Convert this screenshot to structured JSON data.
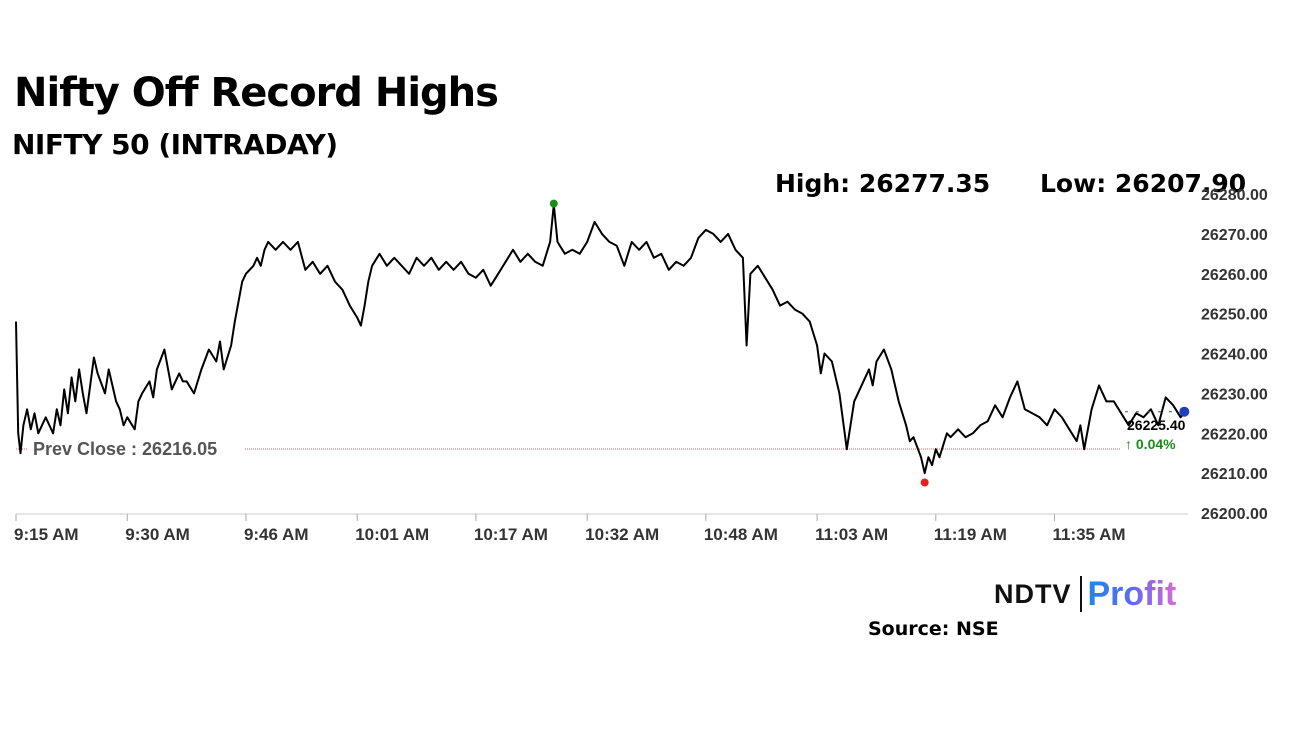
{
  "chart_data": {
    "type": "line",
    "title": "Nifty Off Record Highs",
    "subtitle": "NIFTY 50 (INTRADAY)",
    "high_label": "High: 26277.35",
    "low_label": "Low: 26207.90",
    "high": 26277.35,
    "low": 26207.9,
    "prev_close": 26216.05,
    "prev_close_label": "Prev Close : 26216.05",
    "last_value": 26225.4,
    "last_value_label": "26225.40",
    "change_label": "↑ 0.04%",
    "ylim": [
      26200,
      26280
    ],
    "y_ticks": [
      "26200.00",
      "26210.00",
      "26220.00",
      "26230.00",
      "26240.00",
      "26250.00",
      "26260.00",
      "26270.00",
      "26280.00"
    ],
    "x_ticks": [
      "9:15 AM",
      "9:30 AM",
      "9:46 AM",
      "10:01 AM",
      "10:17 AM",
      "10:32 AM",
      "10:48 AM",
      "11:03 AM",
      "11:19 AM",
      "11:35 AM"
    ],
    "x_tick_minutes": [
      555,
      570,
      586,
      601,
      617,
      632,
      648,
      663,
      679,
      695
    ],
    "grid": false,
    "colors": {
      "line": "#000000",
      "high_marker": "#1a8c1a",
      "low_marker": "#e62020",
      "last_marker": "#1f3fbf",
      "prev_close_line": "#e06060"
    },
    "series": [
      {
        "points": [
          [
            555,
            26248
          ],
          [
            555.3,
            26220
          ],
          [
            555.6,
            26215
          ],
          [
            556,
            26222
          ],
          [
            556.5,
            26226
          ],
          [
            557,
            26221
          ],
          [
            557.5,
            26225
          ],
          [
            558,
            26220
          ],
          [
            559,
            26224
          ],
          [
            560,
            26220
          ],
          [
            560.5,
            26226
          ],
          [
            561,
            26222
          ],
          [
            561.5,
            26231
          ],
          [
            562,
            26225
          ],
          [
            562.5,
            26234
          ],
          [
            563,
            26228
          ],
          [
            563.5,
            26236
          ],
          [
            564,
            26230
          ],
          [
            564.5,
            26225
          ],
          [
            565,
            26232
          ],
          [
            565.5,
            26239
          ],
          [
            566,
            26235
          ],
          [
            567,
            26230
          ],
          [
            567.5,
            26236
          ],
          [
            568,
            26232
          ],
          [
            568.5,
            26228
          ],
          [
            569,
            26226
          ],
          [
            569.5,
            26222
          ],
          [
            570,
            26224
          ],
          [
            571,
            26221
          ],
          [
            571.5,
            26228
          ],
          [
            572,
            26230
          ],
          [
            573,
            26233
          ],
          [
            573.5,
            26229
          ],
          [
            574,
            26236
          ],
          [
            575,
            26241
          ],
          [
            575.5,
            26236
          ],
          [
            576,
            26231
          ],
          [
            577,
            26235
          ],
          [
            577.5,
            26233
          ],
          [
            578,
            26233
          ],
          [
            579,
            26230
          ],
          [
            580,
            26236
          ],
          [
            581,
            26241
          ],
          [
            582,
            26238
          ],
          [
            582.5,
            26243
          ],
          [
            583,
            26236
          ],
          [
            584,
            26242
          ],
          [
            584.5,
            26248
          ],
          [
            585,
            26253
          ],
          [
            585.5,
            26258
          ],
          [
            586,
            26260
          ],
          [
            587,
            26262
          ],
          [
            587.5,
            26264
          ],
          [
            588,
            26262
          ],
          [
            588.5,
            26266
          ],
          [
            589,
            26268
          ],
          [
            590,
            26266
          ],
          [
            591,
            26268
          ],
          [
            592,
            26266
          ],
          [
            593,
            26268
          ],
          [
            594,
            26261
          ],
          [
            595,
            26263
          ],
          [
            596,
            26260
          ],
          [
            597,
            26262
          ],
          [
            598,
            26258
          ],
          [
            599,
            26256
          ],
          [
            600,
            26252
          ],
          [
            601,
            26249
          ],
          [
            601.5,
            26247
          ],
          [
            602,
            26252
          ],
          [
            602.5,
            26258
          ],
          [
            603,
            26262
          ],
          [
            604,
            26265
          ],
          [
            605,
            26262
          ],
          [
            606,
            26264
          ],
          [
            607,
            26262
          ],
          [
            608,
            26260
          ],
          [
            609,
            26264
          ],
          [
            610,
            26262
          ],
          [
            611,
            26264
          ],
          [
            612,
            26261
          ],
          [
            613,
            26263
          ],
          [
            614,
            26261
          ],
          [
            615,
            26263
          ],
          [
            616,
            26260
          ],
          [
            617,
            26259
          ],
          [
            618,
            26261
          ],
          [
            619,
            26257
          ],
          [
            620,
            26260
          ],
          [
            621,
            26263
          ],
          [
            622,
            26266
          ],
          [
            623,
            26263
          ],
          [
            624,
            26265
          ],
          [
            625,
            26263
          ],
          [
            626,
            26262
          ],
          [
            627,
            26268
          ],
          [
            627.5,
            26277.35
          ],
          [
            628,
            26268
          ],
          [
            629,
            26265
          ],
          [
            630,
            26266
          ],
          [
            631,
            26265
          ],
          [
            632,
            26268
          ],
          [
            633,
            26273
          ],
          [
            634,
            26270
          ],
          [
            635,
            26268
          ],
          [
            636,
            26267
          ],
          [
            637,
            26262
          ],
          [
            638,
            26268
          ],
          [
            639,
            26266
          ],
          [
            640,
            26268
          ],
          [
            641,
            26264
          ],
          [
            642,
            26265
          ],
          [
            643,
            26261
          ],
          [
            644,
            26263
          ],
          [
            645,
            26262
          ],
          [
            646,
            26264
          ],
          [
            647,
            26269
          ],
          [
            648,
            26271
          ],
          [
            649,
            26270
          ],
          [
            650,
            26268
          ],
          [
            651,
            26270
          ],
          [
            652,
            26266
          ],
          [
            653,
            26264
          ],
          [
            653.5,
            26242
          ],
          [
            654,
            26260
          ],
          [
            655,
            26262
          ],
          [
            656,
            26259
          ],
          [
            657,
            26256
          ],
          [
            658,
            26252
          ],
          [
            659,
            26253
          ],
          [
            660,
            26251
          ],
          [
            661,
            26250
          ],
          [
            662,
            26248
          ],
          [
            663,
            26242
          ],
          [
            663.5,
            26235
          ],
          [
            664,
            26240
          ],
          [
            665,
            26238
          ],
          [
            666,
            26230
          ],
          [
            667,
            26216
          ],
          [
            667.5,
            26222
          ],
          [
            668,
            26228
          ],
          [
            669,
            26232
          ],
          [
            670,
            26236
          ],
          [
            670.5,
            26232
          ],
          [
            671,
            26238
          ],
          [
            672,
            26241
          ],
          [
            673,
            26236
          ],
          [
            673.5,
            26232
          ],
          [
            674,
            26228
          ],
          [
            675,
            26222
          ],
          [
            675.5,
            26218
          ],
          [
            676,
            26219
          ],
          [
            677,
            26214
          ],
          [
            677.5,
            26210
          ],
          [
            678,
            26214
          ],
          [
            678.5,
            26212
          ],
          [
            679,
            26216
          ],
          [
            679.5,
            26214
          ],
          [
            680,
            26217
          ],
          [
            680.5,
            26220
          ],
          [
            681,
            26219
          ],
          [
            682,
            26221
          ],
          [
            683,
            26219
          ],
          [
            684,
            26220
          ],
          [
            685,
            26222
          ],
          [
            686,
            26223
          ],
          [
            687,
            26227
          ],
          [
            688,
            26224
          ],
          [
            689,
            26229
          ],
          [
            690,
            26233
          ],
          [
            691,
            26226
          ],
          [
            692,
            26225
          ],
          [
            693,
            26224
          ],
          [
            694,
            26222
          ],
          [
            695,
            26226
          ],
          [
            696,
            26224
          ],
          [
            697,
            26221
          ],
          [
            698,
            26218
          ],
          [
            698.5,
            26222
          ],
          [
            699,
            26216
          ],
          [
            700,
            26226
          ],
          [
            701,
            26232
          ],
          [
            702,
            26228
          ],
          [
            703,
            26228
          ],
          [
            704,
            26225
          ],
          [
            705,
            26222
          ],
          [
            706,
            26225
          ],
          [
            707,
            26224
          ],
          [
            708,
            26226
          ],
          [
            709,
            26222
          ],
          [
            710,
            26229
          ],
          [
            711,
            26227
          ],
          [
            712,
            26224
          ],
          [
            712.5,
            26225.4
          ]
        ]
      }
    ]
  },
  "logo": {
    "ndtv": "NDTV",
    "profit": "Profit"
  },
  "source": "Source: NSE"
}
